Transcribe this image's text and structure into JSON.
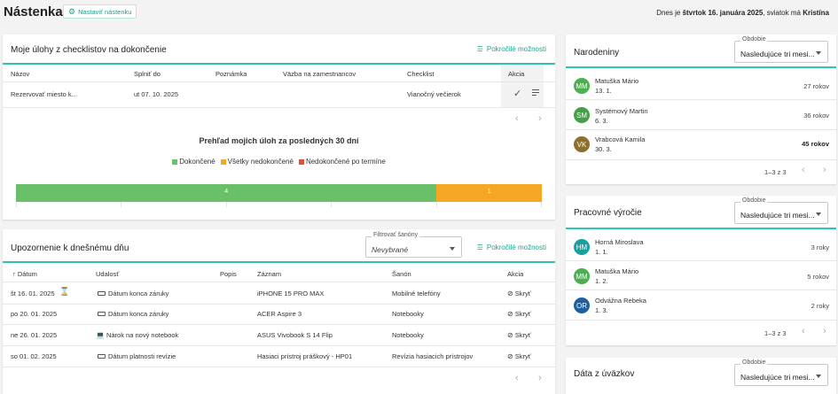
{
  "header": {
    "title": "Nástenka",
    "set_button": "Nastaviť nástenku",
    "date_prefix": "Dnes je",
    "date_bold": "štvrtok 16. januára 2025",
    "date_middle": ", sviatok má",
    "nameday": "Kristína"
  },
  "tasks": {
    "title": "Moje úlohy z checklistov na dokončenie",
    "advanced": "Pokročilé možnosti",
    "columns": [
      "Názov",
      "Splniť do",
      "Poznámka",
      "Väzba na zamestnancov",
      "Checklist",
      "Akcia"
    ],
    "rows": [
      {
        "name": "Rezervovať miesto k...",
        "due": "ut 07. 10. 2025",
        "note": "",
        "link": "",
        "checklist": "Vianočný večierok"
      }
    ],
    "chart_heading": "Prehľad mojich úloh za posledných 30 dní",
    "chart_data": {
      "type": "bar",
      "orientation": "horizontal-stacked",
      "series": [
        {
          "name": "Dokončené",
          "values": [
            4
          ],
          "color": "#6abf69"
        },
        {
          "name": "Všetky nedokončené",
          "values": [
            1
          ],
          "color": "#f5a623"
        },
        {
          "name": "Nedokončené po termíne",
          "values": [
            0
          ],
          "color": "#e74c3c"
        }
      ]
    }
  },
  "notices": {
    "title": "Upozornenie k dnešnému dňu",
    "filter_label": "Filtrovať šanóny",
    "filter_value": "Nevybrané",
    "advanced": "Pokročilé možnosti",
    "columns": [
      "Dátum",
      "Udalosť",
      "Popis",
      "Záznam",
      "Šanón",
      "Akcia"
    ],
    "rows": [
      {
        "date": "št 16. 01. 2025",
        "event": "Dátum konca záruky",
        "record": "iPHONE 15 PRO MAX",
        "folder": "Mobilné telefóny",
        "action": "Skryť"
      },
      {
        "date": "po 20. 01. 2025",
        "event": "Dátum konca záruky",
        "record": "ACER Aspire 3",
        "folder": "Notebooky",
        "action": "Skryť"
      },
      {
        "date": "ne 26. 01. 2025",
        "event": "Nárok na nový notebook",
        "record": "ASUS Vivobook S 14 Flip",
        "folder": "Notebooky",
        "action": "Skryť"
      },
      {
        "date": "so 01. 02. 2025",
        "event": "Dátum platnosti revízie",
        "record": "Hasiaci prístroj práškový - HP01",
        "folder": "Revízia hasiacich prístrojov",
        "action": "Skryť"
      }
    ]
  },
  "birthdays": {
    "title": "Narodeniny",
    "period_label": "Obdobie",
    "period_value": "Nasledujúce tri mesi...",
    "items": [
      {
        "initials": "MM",
        "name": "Matuška Mário",
        "date": "13. 1.",
        "age": "27 rokov",
        "color": "#4caf50"
      },
      {
        "initials": "SM",
        "name": "Systémový Martin",
        "date": "6. 3.",
        "age": "36 rokov",
        "color": "#43a047"
      },
      {
        "initials": "VK",
        "name": "Vrabcová Kamila",
        "date": "30. 3.",
        "age": "45 rokov",
        "color": "#8d6e2b"
      }
    ],
    "pagination": "1–3 z 3"
  },
  "anniversaries": {
    "title": "Pracovné výročie",
    "period_label": "Obdobie",
    "period_value": "Nasledujúce tri mesi...",
    "items": [
      {
        "initials": "HM",
        "name": "Horná Miroslava",
        "date": "1. 1.",
        "years": "3 roky",
        "color": "#16a0a0"
      },
      {
        "initials": "MM",
        "name": "Matuška Mário",
        "date": "1. 2.",
        "years": "5 rokov",
        "color": "#4caf50"
      },
      {
        "initials": "OR",
        "name": "Odvážna Rebeka",
        "date": "1. 3.",
        "years": "2 roky",
        "color": "#1e5fa0"
      }
    ],
    "pagination": "1–3 z 3"
  },
  "contracts": {
    "title": "Dáta z úväzkov",
    "period_label": "Obdobie",
    "period_value": "Nasledujúce tri mesi..."
  }
}
